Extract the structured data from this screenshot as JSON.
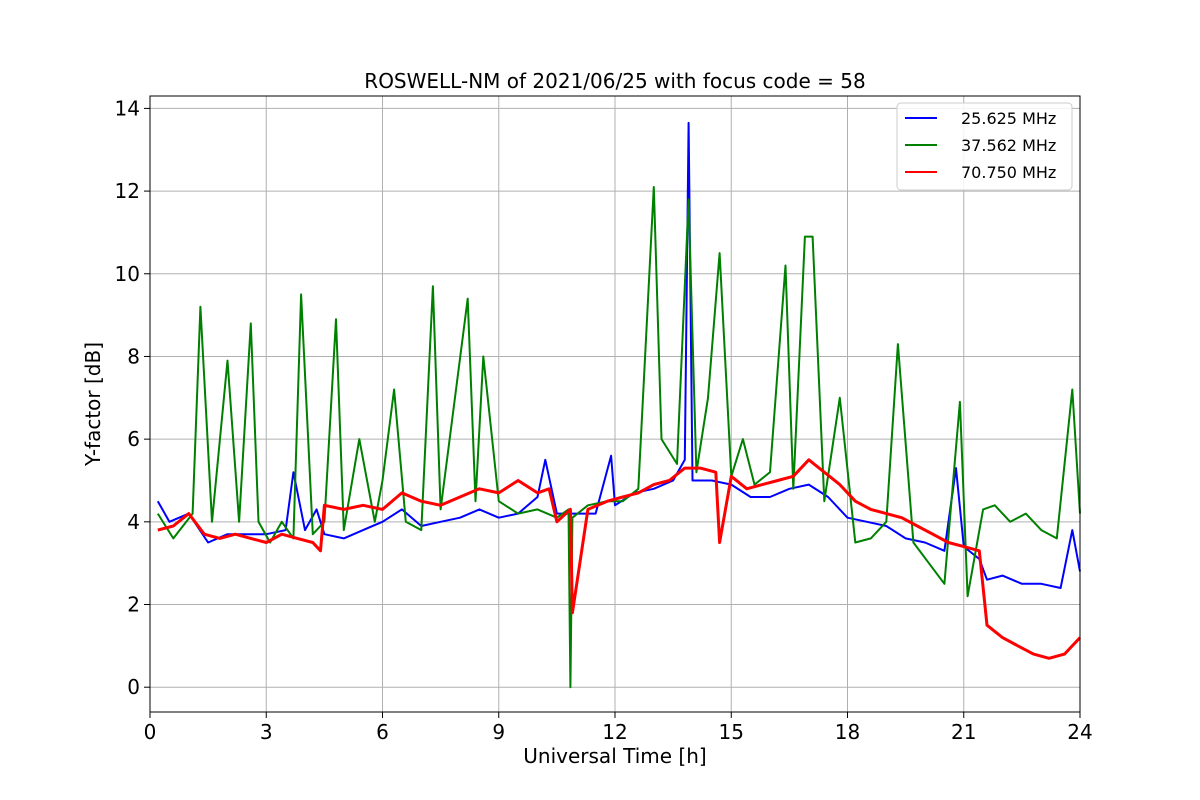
{
  "chart_data": {
    "type": "line",
    "title": "ROSWELL-NM of 2021/06/25 with focus code = 58",
    "xlabel": "Universal Time [h]",
    "ylabel": "Y-factor [dB]",
    "xlim": [
      0,
      24
    ],
    "ylim": [
      -0.6,
      14.3
    ],
    "xticks": [
      0,
      3,
      6,
      9,
      12,
      15,
      18,
      21,
      24
    ],
    "yticks": [
      0,
      2,
      4,
      6,
      8,
      10,
      12,
      14
    ],
    "grid": true,
    "legend_position": "top-right",
    "series": [
      {
        "name": "25.625 MHz",
        "color": "#0000ff",
        "x": [
          0.2,
          0.5,
          1,
          1.5,
          2,
          2.5,
          3,
          3.5,
          3.7,
          4,
          4.3,
          4.5,
          5,
          5.5,
          6,
          6.5,
          7,
          7.5,
          8,
          8.5,
          9,
          9.5,
          10,
          10.2,
          10.5,
          11,
          11.5,
          11.9,
          12,
          12.5,
          13,
          13.5,
          13.8,
          13.9,
          14,
          14.5,
          15,
          15.5,
          16,
          16.5,
          17,
          17.5,
          18,
          18.5,
          19,
          19.5,
          20,
          20.5,
          20.8,
          21,
          21.4,
          21.6,
          22,
          22.5,
          23,
          23.5,
          23.8,
          24
        ],
        "y": [
          4.5,
          4.0,
          4.2,
          3.5,
          3.7,
          3.7,
          3.7,
          3.8,
          5.2,
          3.8,
          4.3,
          3.7,
          3.6,
          3.8,
          4.0,
          4.3,
          3.9,
          4.0,
          4.1,
          4.3,
          4.1,
          4.2,
          4.6,
          5.5,
          4.2,
          4.2,
          4.2,
          5.6,
          4.4,
          4.7,
          4.8,
          5.0,
          5.5,
          13.65,
          5.0,
          5.0,
          4.9,
          4.6,
          4.6,
          4.8,
          4.9,
          4.6,
          4.1,
          4.0,
          3.9,
          3.6,
          3.5,
          3.3,
          5.3,
          3.4,
          3.1,
          2.6,
          2.7,
          2.5,
          2.5,
          2.4,
          3.8,
          2.8
        ]
      },
      {
        "name": "37.562 MHz",
        "color": "#008000",
        "x": [
          0.2,
          0.6,
          1.1,
          1.3,
          1.6,
          2.0,
          2.3,
          2.6,
          2.8,
          3.1,
          3.4,
          3.7,
          3.9,
          4.2,
          4.5,
          4.8,
          5.0,
          5.4,
          5.8,
          6.0,
          6.3,
          6.6,
          7.0,
          7.3,
          7.5,
          7.8,
          8.2,
          8.4,
          8.6,
          9.0,
          9.5,
          10.0,
          10.5,
          10.8,
          10.85,
          10.9,
          11.3,
          11.8,
          12.2,
          12.6,
          13.0,
          13.2,
          13.6,
          13.9,
          14.1,
          14.4,
          14.7,
          15.0,
          15.3,
          15.6,
          16.0,
          16.4,
          16.6,
          16.9,
          17.1,
          17.4,
          17.8,
          18.2,
          18.6,
          19.0,
          19.3,
          19.7,
          20.1,
          20.5,
          20.9,
          21.1,
          21.5,
          21.8,
          22.2,
          22.6,
          23.0,
          23.4,
          23.8,
          24.0
        ],
        "y": [
          4.2,
          3.6,
          4.2,
          9.2,
          4.0,
          7.9,
          4.0,
          8.8,
          4.0,
          3.5,
          4.0,
          3.6,
          9.5,
          3.7,
          4.0,
          8.9,
          3.8,
          6.0,
          4.0,
          5.0,
          7.2,
          4.0,
          3.8,
          9.7,
          4.3,
          6.5,
          9.4,
          4.5,
          8.0,
          4.5,
          4.2,
          4.3,
          4.1,
          4.3,
          0.0,
          4.1,
          4.4,
          4.5,
          4.5,
          4.8,
          12.1,
          6.0,
          5.4,
          11.8,
          5.2,
          7.0,
          10.5,
          5.1,
          6.0,
          4.9,
          5.2,
          10.2,
          4.8,
          10.9,
          10.9,
          4.5,
          7.0,
          3.5,
          3.6,
          4.0,
          8.3,
          3.5,
          3.0,
          2.5,
          6.9,
          2.2,
          4.3,
          4.4,
          4.0,
          4.2,
          3.8,
          3.6,
          7.2,
          4.2
        ]
      },
      {
        "name": "70.750 MHz",
        "color": "#ff0000",
        "x": [
          0.2,
          0.6,
          1.0,
          1.4,
          1.8,
          2.2,
          2.6,
          3.0,
          3.4,
          3.8,
          4.2,
          4.4,
          4.5,
          5.0,
          5.5,
          6.0,
          6.5,
          7.0,
          7.5,
          8.0,
          8.5,
          9.0,
          9.5,
          10.0,
          10.3,
          10.5,
          10.85,
          10.9,
          11.3,
          11.8,
          12.2,
          12.6,
          13.0,
          13.4,
          13.8,
          14.2,
          14.6,
          14.7,
          15.0,
          15.4,
          15.8,
          16.2,
          16.6,
          17.0,
          17.4,
          17.8,
          18.2,
          18.6,
          19.0,
          19.4,
          19.8,
          20.2,
          20.6,
          21.0,
          21.4,
          21.6,
          22.0,
          22.4,
          22.8,
          23.2,
          23.6,
          24.0
        ],
        "y": [
          3.8,
          3.9,
          4.2,
          3.7,
          3.6,
          3.7,
          3.6,
          3.5,
          3.7,
          3.6,
          3.5,
          3.3,
          4.4,
          4.3,
          4.4,
          4.3,
          4.7,
          4.5,
          4.4,
          4.6,
          4.8,
          4.7,
          5.0,
          4.7,
          4.8,
          4.0,
          4.3,
          1.8,
          4.3,
          4.5,
          4.6,
          4.7,
          4.9,
          5.0,
          5.3,
          5.3,
          5.2,
          3.5,
          5.1,
          4.8,
          4.9,
          5.0,
          5.1,
          5.5,
          5.2,
          4.9,
          4.5,
          4.3,
          4.2,
          4.1,
          3.9,
          3.7,
          3.5,
          3.4,
          3.3,
          1.5,
          1.2,
          1.0,
          0.8,
          0.7,
          0.8,
          1.2
        ]
      }
    ]
  }
}
